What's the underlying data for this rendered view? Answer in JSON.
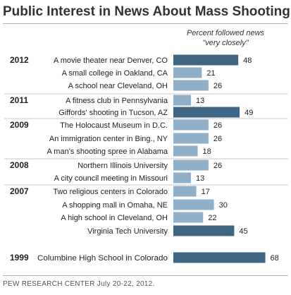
{
  "title": "Public Interest in News About Mass Shootings",
  "column_header": {
    "line1": "Percent followed news",
    "line2": "\"very closely\""
  },
  "footer": "PEW RESEARCH  CENTER July 20-22, 2012.",
  "colors": {
    "highlight": "#3f6682",
    "regular": "#8fb0c8",
    "separator": "#c8c8c8"
  },
  "chart_data": {
    "type": "bar",
    "orientation": "horizontal",
    "title": "Public Interest in News About Mass Shootings",
    "xlabel": "",
    "ylabel": "",
    "value_label": "Percent followed news \"very closely\"",
    "xlim": [
      0,
      70
    ],
    "grid": false,
    "categories": [
      "A movie theater near Denver, CO",
      "A small college in Oakland, CA",
      "A school near Cleveland, OH",
      "A fitness club in Pennsylvania",
      "Giffords' shooting in Tucson, AZ",
      "The Holocaust Museum in D.C.",
      "An immigration center in Bing., NY",
      "A man's shooting spree in Alabama",
      "Northern Illinois University",
      "A city council meeting in Missouri",
      "Two religious centers in Colorado",
      "A shopping mall in Omaha, NE",
      "A high school in Cleveland, OH",
      "Virginia Tech University",
      "Columbine High School in Colorado"
    ],
    "values": [
      48,
      21,
      26,
      13,
      49,
      26,
      26,
      18,
      26,
      13,
      17,
      30,
      22,
      45,
      68
    ],
    "years": [
      "2012",
      "",
      "",
      "2011",
      "",
      "2009",
      "",
      "",
      "2008",
      "",
      "2007",
      "",
      "",
      "",
      "1999"
    ],
    "highlighted": [
      true,
      false,
      false,
      false,
      true,
      false,
      false,
      false,
      false,
      false,
      false,
      false,
      false,
      true,
      true
    ]
  }
}
